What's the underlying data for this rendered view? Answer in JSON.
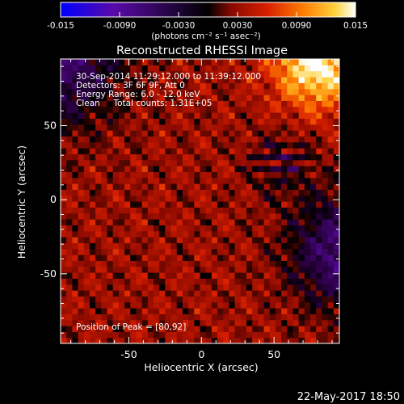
{
  "colorbar": {
    "range": [
      -0.015,
      0.015
    ],
    "ticks": [
      "-0.015",
      "-0.0090",
      "-0.0030",
      "0.0030",
      "0.0090",
      "0.015"
    ],
    "unit_label": "(photons cm⁻² s⁻¹ asec⁻²)",
    "colors": [
      "#0000ff",
      "#5a0aa8",
      "#000000",
      "#8a0a00",
      "#d81e00",
      "#ff7b00",
      "#ffd23c",
      "#ffffff"
    ]
  },
  "chart_data": {
    "type": "heatmap",
    "title": "Reconstructed RHESSI Image",
    "xlabel": "Heliocentric X (arcsec)",
    "ylabel": "Heliocentric Y (arcsec)",
    "xlim": [
      -97,
      95
    ],
    "ylim": [
      -97,
      95
    ],
    "xticks": [
      -50,
      0,
      50
    ],
    "yticks": [
      -50,
      0,
      50
    ],
    "zlim": [
      -0.015,
      0.015
    ],
    "peak_position": [
      80,
      92
    ],
    "annotations": [
      "30-Sep-2014 11:29:12.000 to 11:39:12.000",
      "Detectors: 3F 6F 9F, Att 0",
      "Energy Range: 6.0 - 12.0 keV",
      "Clean     Total counts: 1.31E+05"
    ],
    "peak_label": "Position of Peak = [80,92]"
  },
  "footer": {
    "timestamp": "22-May-2017 18:50"
  }
}
